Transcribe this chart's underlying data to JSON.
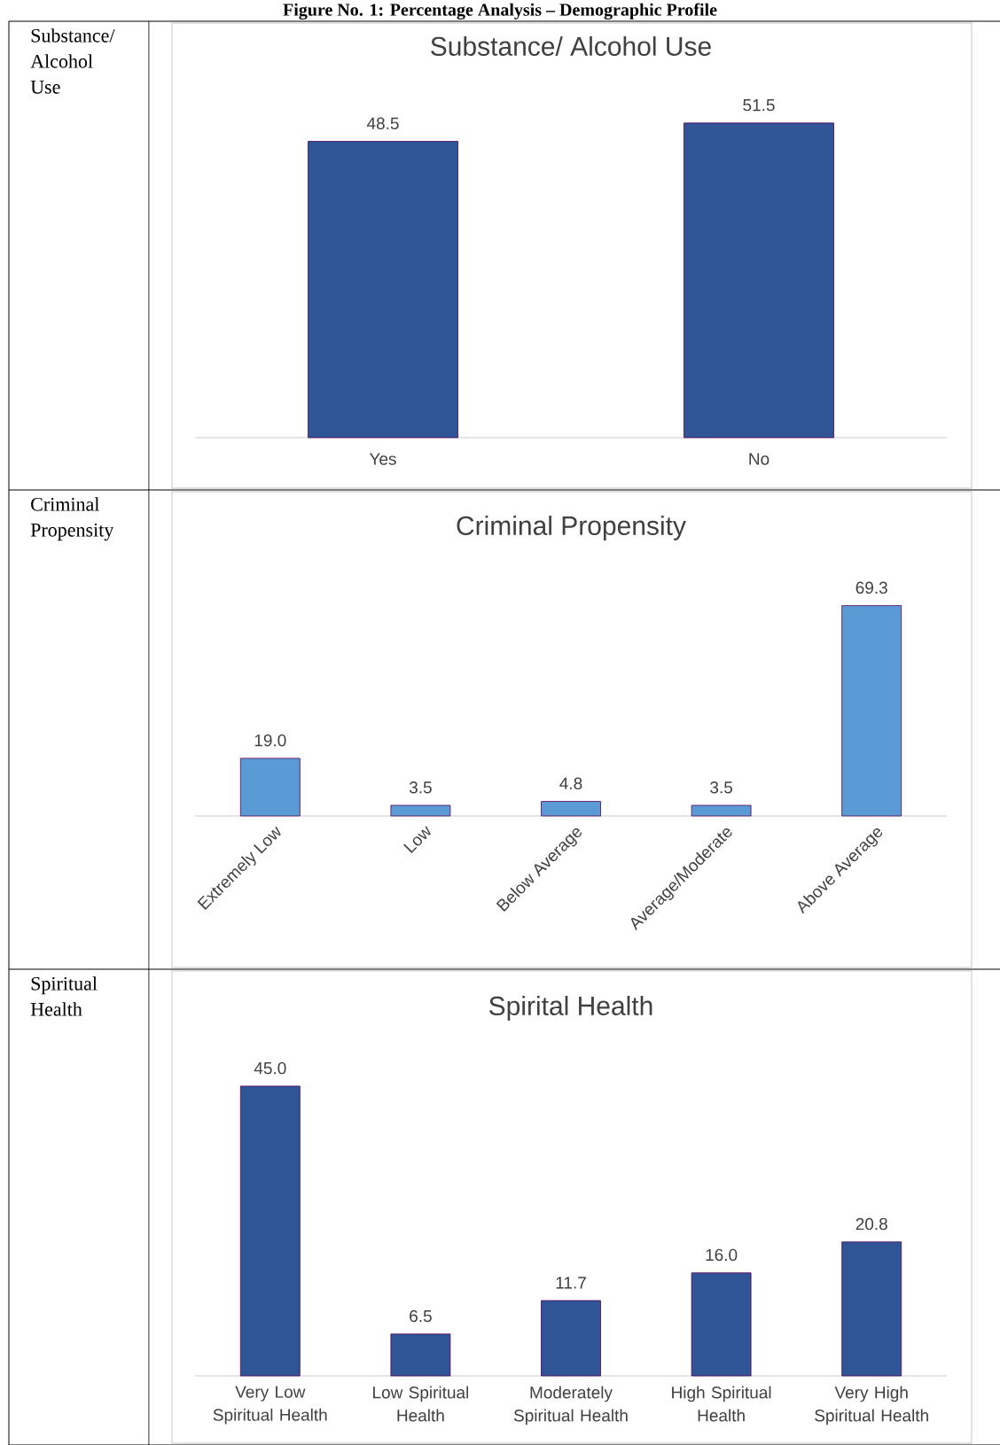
{
  "chart_data": [
    {
      "type": "bar",
      "title": "Substance/ Alcohol Use",
      "categories": [
        "Yes",
        "No"
      ],
      "values": [
        48.5,
        51.5
      ],
      "value_labels": [
        "48.5",
        "51.5"
      ],
      "color": "#2f5597",
      "annotations": [
        "Figure No. 1: Percentage Analysis – Demographic Profile",
        "Substance/ Alcohol Use"
      ]
    },
    {
      "type": "bar",
      "title": "Criminal Propensity",
      "categories": [
        "Extremely Low",
        "Low",
        "Below Average",
        "Average/Moderate",
        "Above Average"
      ],
      "values": [
        19.0,
        3.5,
        4.8,
        3.5,
        69.3
      ],
      "value_labels": [
        "19.0",
        "3.5",
        "4.8",
        "3.5",
        "69.3"
      ],
      "color": "#5b9bd5",
      "annotations": [
        "Criminal Propensity"
      ]
    },
    {
      "type": "bar",
      "title": "Spirital Health",
      "categories": [
        "Very Low Spiritual Health",
        "Low Spiritual Health",
        "Moderately Spiritual Health",
        "High Spiritual Health",
        "Very High Spiritual Health"
      ],
      "values": [
        45.0,
        6.5,
        11.7,
        16.0,
        20.8
      ],
      "value_labels": [
        "45.0",
        "6.5",
        "11.7",
        "16.0",
        "20.8"
      ],
      "color": "#2f5597",
      "annotations": [
        "Spiritual Health"
      ]
    }
  ]
}
